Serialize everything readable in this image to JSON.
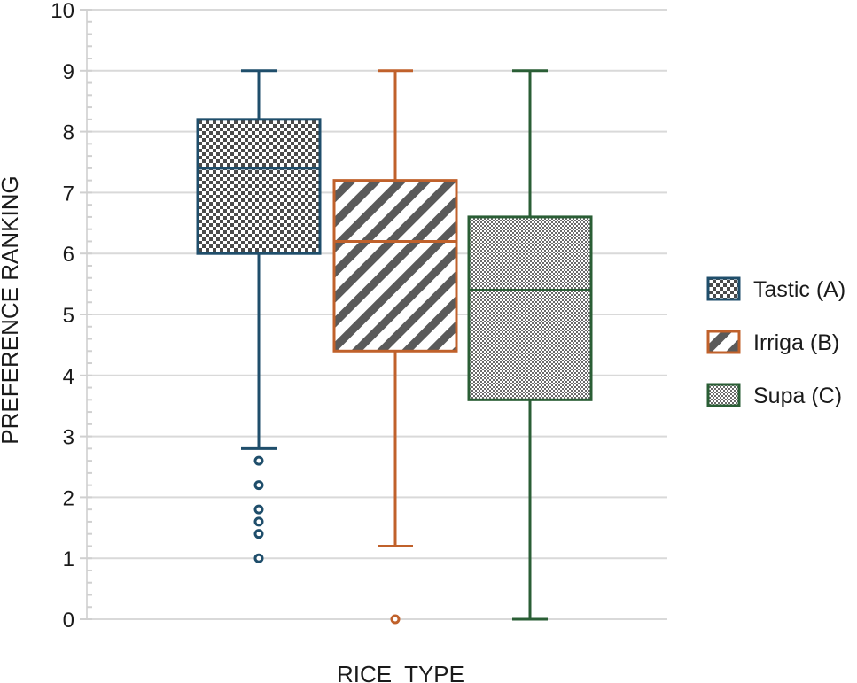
{
  "chart_data": {
    "type": "box",
    "title": "",
    "xlabel": "RICE  TYPE",
    "ylabel": "PREFERENCE RANKING",
    "ylim": [
      0,
      10
    ],
    "yticks": [
      0,
      1,
      2,
      3,
      4,
      5,
      6,
      7,
      8,
      9,
      10
    ],
    "grid": true,
    "legend_position": "right",
    "series": [
      {
        "name": "Tastic (A)",
        "color": "#1f4e6b",
        "pattern": "checker",
        "whisker_low": 2.8,
        "q1": 6.0,
        "median": 7.4,
        "q3": 8.2,
        "whisker_high": 9.0,
        "outliers": [
          2.6,
          2.2,
          1.8,
          1.6,
          1.4,
          1.0
        ]
      },
      {
        "name": "Irriga (B)",
        "color": "#c0612b",
        "pattern": "diagonal-stripes",
        "whisker_low": 1.2,
        "q1": 4.4,
        "median": 6.2,
        "q3": 7.2,
        "whisker_high": 9.0,
        "outliers": [
          0.0
        ]
      },
      {
        "name": "Supa (C)",
        "color": "#2a5e35",
        "pattern": "fine-checker",
        "whisker_low": 0.0,
        "q1": 3.6,
        "median": 5.4,
        "q3": 6.6,
        "whisker_high": 9.0,
        "outliers": []
      }
    ]
  }
}
